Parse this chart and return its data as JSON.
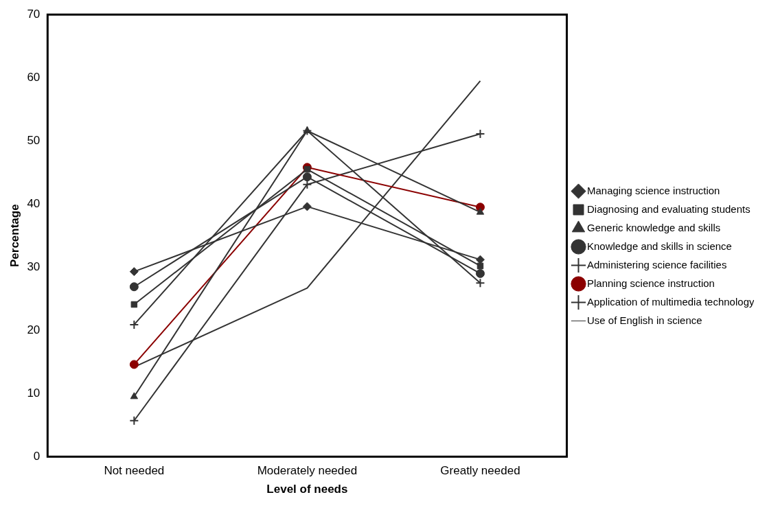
{
  "chart_data": {
    "type": "line",
    "xlabel": "Level of needs",
    "ylabel": "Percentage",
    "categories": [
      "Not needed",
      "Moderately needed",
      "Greatly needed"
    ],
    "ylim": [
      0,
      70
    ],
    "yticks": [
      0,
      10,
      20,
      30,
      40,
      50,
      60,
      70
    ],
    "grid": false,
    "legend": "right",
    "line_style": "solid",
    "series": [
      {
        "name": "Managing science instruction",
        "color": "#333333",
        "marker": "diamond",
        "values": [
          29.3,
          39.6,
          31.2
        ]
      },
      {
        "name": "Diagnosing and evaluating students",
        "color": "#333333",
        "marker": "square",
        "values": [
          24.1,
          45.5,
          30.2
        ]
      },
      {
        "name": "Generic knowledge and skills",
        "color": "#333333",
        "marker": "triangle",
        "values": [
          9.5,
          51.6,
          38.7
        ]
      },
      {
        "name": "Knowledge and skills in science",
        "color": "#333333",
        "marker": "circle",
        "values": [
          26.9,
          44.3,
          29.0
        ]
      },
      {
        "name": "Administering science facilities",
        "color": "#333333",
        "marker": "cross",
        "values": [
          20.9,
          51.6,
          27.5
        ]
      },
      {
        "name": "Planning science instruction",
        "color": "#8b0000",
        "marker": "circle",
        "values": [
          14.6,
          45.8,
          39.5
        ]
      },
      {
        "name": "Application of multimedia technology",
        "color": "#333333",
        "marker": "cross",
        "values": [
          5.7,
          43.1,
          51.1
        ]
      },
      {
        "name": "Use of English in science",
        "color": "#333333",
        "marker": "none",
        "values": [
          14.2,
          26.7,
          59.5
        ]
      }
    ]
  }
}
